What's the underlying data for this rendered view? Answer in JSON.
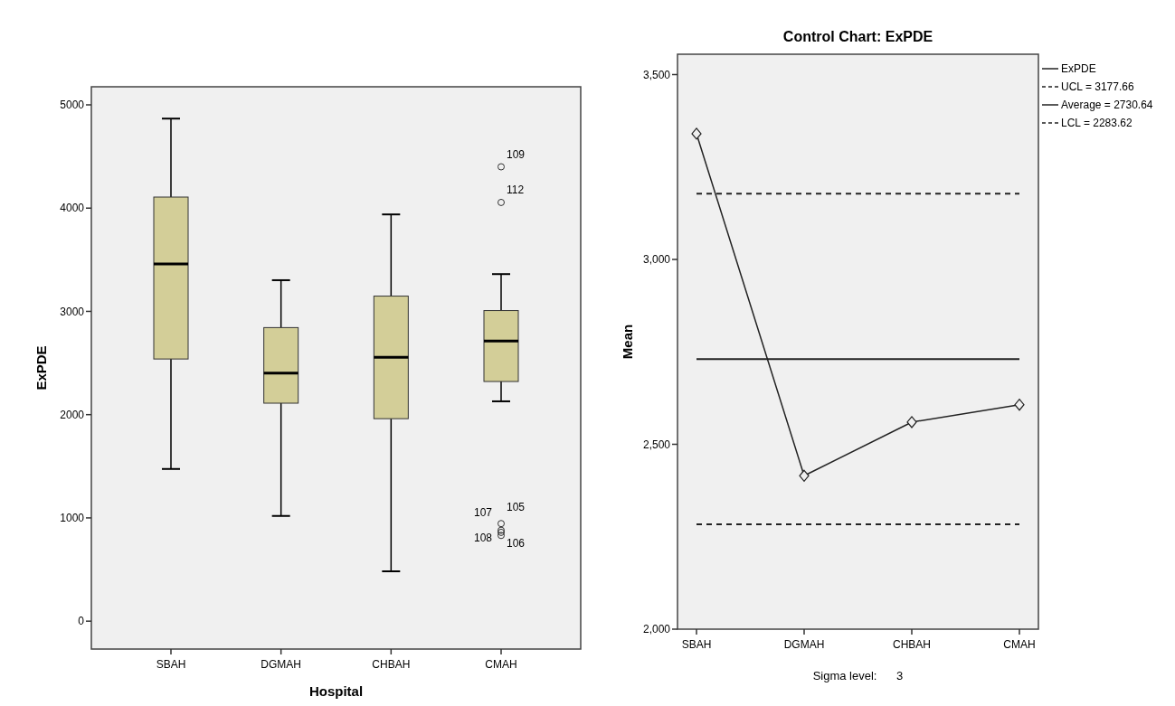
{
  "chart_data": [
    {
      "type": "box",
      "xlabel": "Hospital",
      "ylabel": "ExPDE",
      "categories": [
        "SBAH",
        "DGMAH",
        "CHBAH",
        "CMAH"
      ],
      "color": "#d3ce98",
      "ylim": [
        -270,
        5175
      ],
      "yticks": [
        0,
        1000,
        2000,
        3000,
        4000,
        5000
      ],
      "grid": false,
      "boxes": [
        {
          "low": 1474,
          "q1": 2539,
          "median": 3459,
          "q3": 4107,
          "high": 4867
        },
        {
          "low": 1019,
          "q1": 2111,
          "median": 2402,
          "q3": 2843,
          "high": 3302
        },
        {
          "low": 483,
          "q1": 1961,
          "median": 2556,
          "q3": 3148,
          "high": 3939
        },
        {
          "low": 2129,
          "q1": 2321,
          "median": 2714,
          "q3": 3008,
          "high": 3361,
          "outliers": [
            4400,
            4055,
            945,
            880,
            860,
            830
          ]
        }
      ],
      "annotations": [
        "109",
        "112",
        "105",
        "107",
        "108",
        "106"
      ]
    },
    {
      "type": "line",
      "title": "Control Chart: ExPDE",
      "ylabel": "Mean",
      "categories": [
        "SBAH",
        "DGMAH",
        "CHBAH",
        "CMAH"
      ],
      "ylim": [
        2000,
        3555
      ],
      "yticks": [
        {
          "value": 2000,
          "label": "2,000"
        },
        {
          "value": 2500,
          "label": "2,500"
        },
        {
          "value": 3000,
          "label": "3,000"
        },
        {
          "value": 3500,
          "label": "3,500"
        }
      ],
      "grid": false,
      "marker": "diamond",
      "legend": "right",
      "series": [
        {
          "name": "ExPDE",
          "color": "#222222",
          "values": [
            3340,
            2415,
            2560,
            2607
          ]
        }
      ],
      "ref_lines": [
        {
          "axis": "y",
          "value": 3177.66,
          "label": "UCL = 3177.66",
          "line_style": "dashed"
        },
        {
          "axis": "y",
          "value": 2730.64,
          "label": "Average = 2730.64",
          "line_style": "solid"
        },
        {
          "axis": "y",
          "value": 2283.62,
          "label": "LCL = 2283.62",
          "line_style": "dashed"
        }
      ],
      "annotations": [
        "Sigma level:      3"
      ]
    }
  ]
}
